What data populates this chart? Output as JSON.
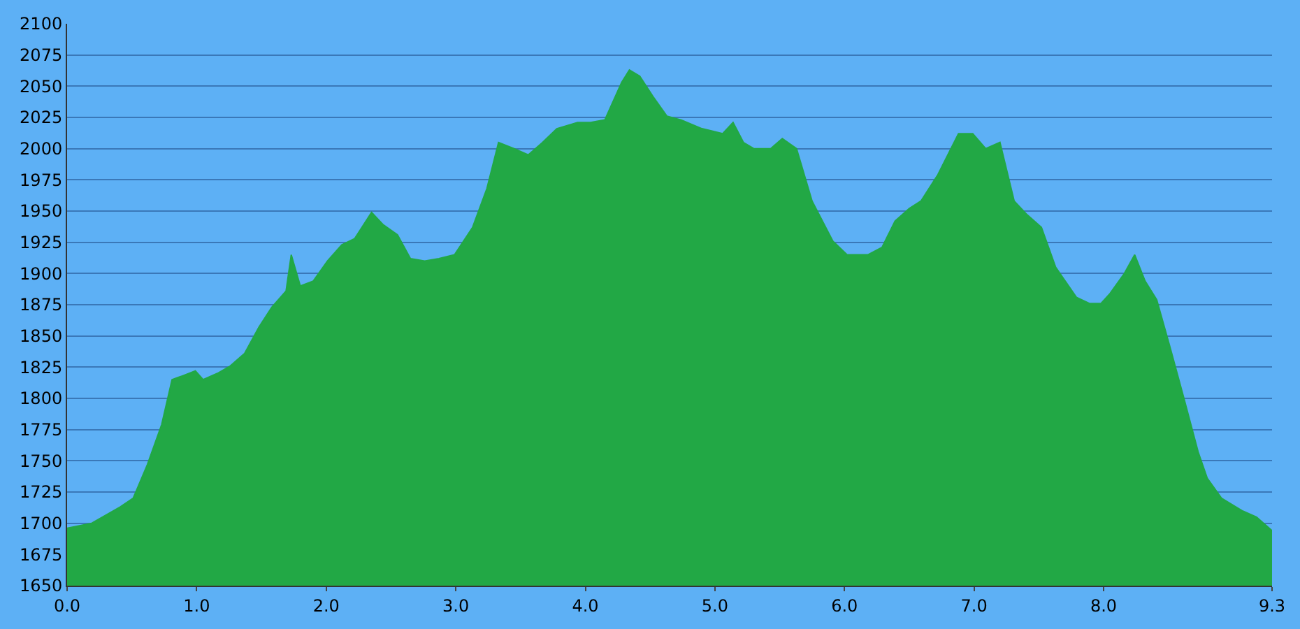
{
  "chart_data": {
    "type": "area",
    "x": [
      0,
      0.19,
      0.41,
      0.51,
      0.62,
      0.73,
      0.81,
      0.89,
      0.99,
      1.05,
      1.16,
      1.26,
      1.37,
      1.48,
      1.58,
      1.69,
      1.73,
      1.8,
      1.9,
      2.01,
      2.12,
      2.22,
      2.35,
      2.44,
      2.55,
      2.65,
      2.76,
      2.87,
      2.99,
      3.13,
      3.24,
      3.33,
      3.45,
      3.56,
      3.67,
      3.78,
      3.94,
      4.04,
      4.15,
      4.28,
      4.34,
      4.42,
      4.52,
      4.63,
      4.74,
      4.9,
      5.06,
      5.14,
      5.22,
      5.3,
      5.43,
      5.52,
      5.63,
      5.75,
      5.91,
      6.02,
      6.18,
      6.29,
      6.39,
      6.5,
      6.59,
      6.72,
      6.88,
      6.99,
      7.09,
      7.2,
      7.31,
      7.41,
      7.52,
      7.63,
      7.79,
      7.89,
      7.98,
      8.05,
      8.16,
      8.24,
      8.32,
      8.41,
      8.51,
      8.62,
      8.73,
      8.8,
      8.91,
      9.07,
      9.18,
      9.3
    ],
    "series": [
      {
        "color": "#22a845",
        "values": [
          1696,
          1700,
          1713,
          1720,
          1747,
          1779,
          1815,
          1818,
          1822,
          1815,
          1820,
          1826,
          1836,
          1857,
          1873,
          1886,
          1915,
          1890,
          1894,
          1910,
          1923,
          1928,
          1949,
          1939,
          1931,
          1912,
          1910,
          1912,
          1915,
          1937,
          1968,
          2005,
          2000,
          1995,
          2005,
          2016,
          2021,
          2021,
          2023,
          2053,
          2063,
          2058,
          2042,
          2026,
          2023,
          2016,
          2012,
          2021,
          2005,
          2000,
          2000,
          2008,
          2000,
          1958,
          1926,
          1915,
          1915,
          1921,
          1942,
          1952,
          1958,
          1979,
          2012,
          2012,
          2000,
          2005,
          1958,
          1947,
          1937,
          1905,
          1881,
          1876,
          1876,
          1884,
          1900,
          1915,
          1894,
          1879,
          1842,
          1800,
          1757,
          1736,
          1720,
          1710,
          1705,
          1694
        ]
      }
    ],
    "xlim": [
      0,
      9.3
    ],
    "xticks": [
      {
        "value": 0,
        "label": "0.0"
      },
      {
        "value": 1,
        "label": "1.0"
      },
      {
        "value": 2,
        "label": "2.0"
      },
      {
        "value": 3,
        "label": "3.0"
      },
      {
        "value": 4,
        "label": "4.0"
      },
      {
        "value": 5,
        "label": "5.0"
      },
      {
        "value": 6,
        "label": "6.0"
      },
      {
        "value": 7,
        "label": "7.0"
      },
      {
        "value": 8,
        "label": "8.0"
      },
      9.3
    ],
    "ylim": [
      1650,
      2100
    ],
    "yticks": [
      1650,
      1675,
      1700,
      1725,
      1750,
      1775,
      1800,
      1825,
      1850,
      1875,
      1900,
      1925,
      1950,
      1975,
      2000,
      2025,
      2050,
      2075,
      2100
    ],
    "grid": "y"
  }
}
